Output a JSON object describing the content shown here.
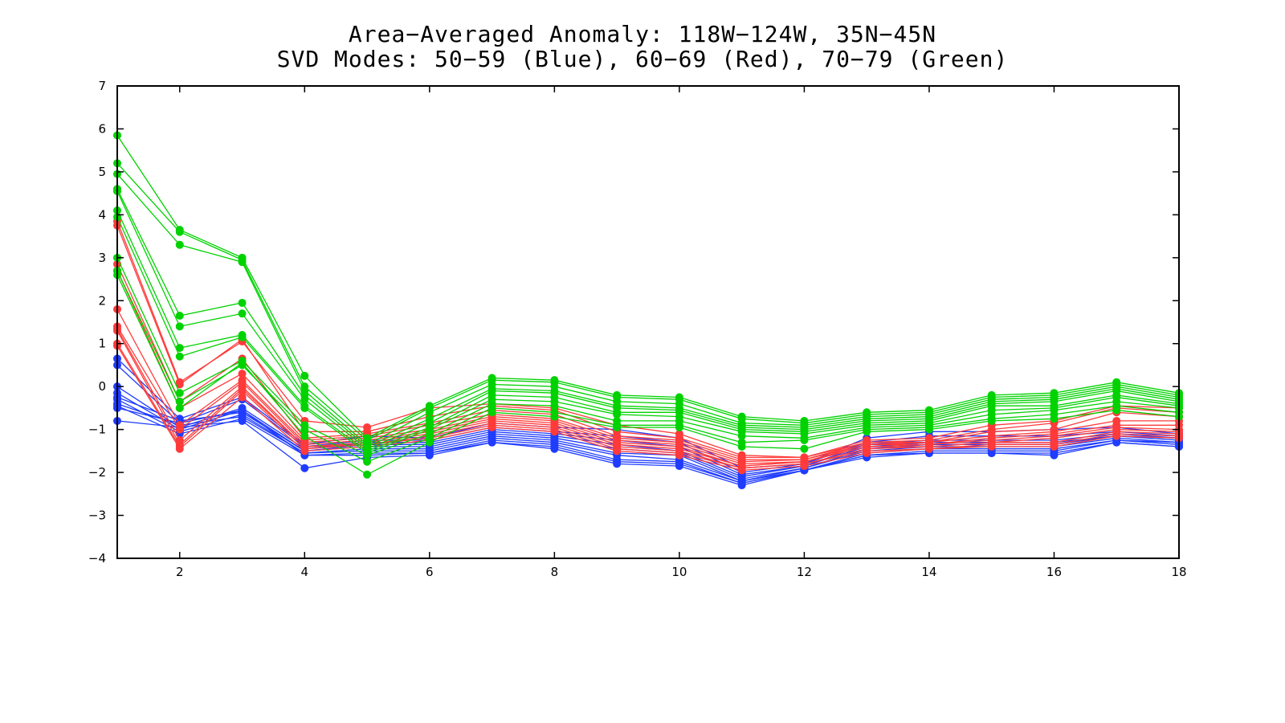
{
  "chart_data": {
    "type": "line",
    "title": "Area−Averaged Anomaly: 118W−124W, 35N−45N",
    "subtitle": "SVD Modes: 50−59 (Blue), 60−69 (Red), 70−79 (Green)",
    "xlabel": "",
    "ylabel": "",
    "xlim": [
      1,
      18
    ],
    "ylim": [
      -4,
      7
    ],
    "x_ticks": [
      2,
      4,
      6,
      8,
      10,
      12,
      14,
      16,
      18
    ],
    "y_ticks": [
      -4,
      -3,
      -2,
      -1,
      0,
      1,
      2,
      3,
      4,
      5,
      6,
      7
    ],
    "y_tick_labels": [
      "−4",
      "−3",
      "−2",
      "−1",
      "0",
      "1",
      "2",
      "3",
      "4",
      "5",
      "6",
      "7"
    ],
    "grid": false,
    "legend": "none",
    "x": [
      1,
      2,
      3,
      4,
      5,
      6,
      7,
      8,
      9,
      10,
      11,
      12,
      13,
      14,
      15,
      16,
      17,
      18
    ],
    "colors": {
      "Blue": "#1f3cff",
      "Red": "#ff3a3a",
      "Green": "#00d200"
    },
    "series": [
      {
        "color": "Blue",
        "values": [
          0.65,
          -0.75,
          -0.25,
          -1.35,
          -1.15,
          -1.2,
          -0.85,
          -0.95,
          -1.0,
          -1.2,
          -1.9,
          -1.8,
          -1.2,
          -1.05,
          -1.05,
          -1.0,
          -0.95,
          -1.1
        ]
      },
      {
        "color": "Blue",
        "values": [
          0.5,
          -0.85,
          -0.3,
          -1.4,
          -1.25,
          -1.25,
          -0.95,
          -1.05,
          -1.15,
          -1.3,
          -2.0,
          -1.8,
          -1.3,
          -1.15,
          -1.15,
          -1.15,
          -1.05,
          -1.15
        ]
      },
      {
        "color": "Blue",
        "values": [
          0.0,
          -0.95,
          -0.5,
          -1.45,
          -1.3,
          -1.3,
          -1.0,
          -1.1,
          -1.25,
          -1.4,
          -2.05,
          -1.85,
          -1.35,
          -1.25,
          -1.25,
          -1.25,
          -1.1,
          -1.2
        ]
      },
      {
        "color": "Blue",
        "values": [
          -0.15,
          -1.0,
          -0.55,
          -1.5,
          -1.35,
          -1.35,
          -1.05,
          -1.15,
          -1.35,
          -1.5,
          -2.1,
          -1.85,
          -1.4,
          -1.3,
          -1.3,
          -1.3,
          -1.15,
          -1.2
        ]
      },
      {
        "color": "Blue",
        "values": [
          -0.25,
          -0.8,
          -0.6,
          -1.5,
          -1.4,
          -1.4,
          -1.1,
          -1.2,
          -1.45,
          -1.55,
          -2.15,
          -1.9,
          -1.45,
          -1.35,
          -1.35,
          -1.35,
          -1.15,
          -1.25
        ]
      },
      {
        "color": "Blue",
        "values": [
          -0.3,
          -1.05,
          -0.65,
          -1.55,
          -1.45,
          -1.45,
          -1.15,
          -1.25,
          -1.55,
          -1.6,
          -2.2,
          -1.9,
          -1.5,
          -1.4,
          -1.4,
          -1.4,
          -1.2,
          -1.3
        ]
      },
      {
        "color": "Blue",
        "values": [
          -0.4,
          -0.9,
          -0.7,
          -1.55,
          -1.5,
          -1.5,
          -1.2,
          -1.3,
          -1.6,
          -1.7,
          -2.2,
          -1.95,
          -1.55,
          -1.45,
          -1.45,
          -1.45,
          -1.25,
          -1.3
        ]
      },
      {
        "color": "Blue",
        "values": [
          -0.45,
          -1.1,
          -0.75,
          -1.6,
          -1.55,
          -1.55,
          -1.25,
          -1.35,
          -1.7,
          -1.75,
          -2.25,
          -1.95,
          -1.6,
          -1.5,
          -1.5,
          -1.5,
          -1.25,
          -1.35
        ]
      },
      {
        "color": "Blue",
        "values": [
          -0.5,
          -0.85,
          -0.55,
          -1.6,
          -1.6,
          -1.55,
          -1.3,
          -1.4,
          -1.75,
          -1.8,
          -2.25,
          -1.95,
          -1.6,
          -1.55,
          -1.55,
          -1.55,
          -1.3,
          -1.4
        ]
      },
      {
        "color": "Blue",
        "values": [
          -0.8,
          -0.95,
          -0.8,
          -1.9,
          -1.65,
          -1.6,
          -1.3,
          -1.45,
          -1.8,
          -1.85,
          -2.3,
          -1.95,
          -1.65,
          -1.55,
          -1.55,
          -1.6,
          -1.3,
          -1.4
        ]
      },
      {
        "color": "Red",
        "values": [
          3.85,
          0.1,
          1.05,
          -0.8,
          -0.95,
          -0.5,
          -0.4,
          -0.5,
          -0.9,
          -1.1,
          -1.6,
          -1.65,
          -1.25,
          -1.2,
          -0.9,
          -0.8,
          -0.45,
          -0.5
        ]
      },
      {
        "color": "Red",
        "values": [
          3.75,
          0.05,
          1.1,
          -1.05,
          -1.05,
          -0.7,
          -0.45,
          -0.55,
          -1.05,
          -1.2,
          -1.65,
          -1.65,
          -1.3,
          -1.25,
          -1.0,
          -0.85,
          -0.5,
          -0.6
        ]
      },
      {
        "color": "Red",
        "values": [
          2.85,
          -0.35,
          0.65,
          -1.2,
          -1.1,
          -0.85,
          -0.55,
          -0.65,
          -1.15,
          -1.25,
          -1.7,
          -1.7,
          -1.3,
          -1.3,
          -1.05,
          -1.0,
          -0.6,
          -0.7
        ]
      },
      {
        "color": "Red",
        "values": [
          2.7,
          -0.5,
          0.3,
          -1.25,
          -1.15,
          -0.9,
          -0.65,
          -0.75,
          -1.2,
          -1.3,
          -1.75,
          -1.7,
          -1.35,
          -1.3,
          -1.15,
          -1.05,
          -0.8,
          -0.8
        ]
      },
      {
        "color": "Red",
        "values": [
          1.8,
          -0.9,
          0.15,
          -1.3,
          -1.2,
          -1.0,
          -0.7,
          -0.8,
          -1.25,
          -1.35,
          -1.8,
          -1.75,
          -1.35,
          -1.35,
          -1.2,
          -1.1,
          -0.9,
          -0.9
        ]
      },
      {
        "color": "Red",
        "values": [
          1.4,
          -1.0,
          0.1,
          -1.35,
          -1.25,
          -1.05,
          -0.75,
          -0.85,
          -1.3,
          -1.4,
          -1.85,
          -1.75,
          -1.4,
          -1.35,
          -1.25,
          -1.15,
          -0.95,
          -1.0
        ]
      },
      {
        "color": "Red",
        "values": [
          1.35,
          -1.25,
          0.0,
          -1.4,
          -1.3,
          -1.1,
          -0.8,
          -0.9,
          -1.35,
          -1.45,
          -1.85,
          -1.75,
          -1.4,
          -1.4,
          -1.3,
          -1.2,
          -1.0,
          -1.05
        ]
      },
      {
        "color": "Red",
        "values": [
          1.3,
          -1.35,
          -0.05,
          -1.4,
          -1.35,
          -1.15,
          -0.85,
          -0.95,
          -1.4,
          -1.5,
          -1.9,
          -1.8,
          -1.45,
          -1.4,
          -1.3,
          -1.3,
          -1.05,
          -1.1
        ]
      },
      {
        "color": "Red",
        "values": [
          1.0,
          -1.4,
          -0.1,
          -1.45,
          -1.35,
          -1.2,
          -0.9,
          -1.0,
          -1.45,
          -1.55,
          -1.9,
          -1.8,
          -1.5,
          -1.45,
          -1.35,
          -1.35,
          -1.1,
          -1.15
        ]
      },
      {
        "color": "Red",
        "values": [
          0.95,
          -1.45,
          -0.25,
          -1.5,
          -1.4,
          -1.25,
          -0.95,
          -1.05,
          -1.5,
          -1.6,
          -1.95,
          -1.85,
          -1.55,
          -1.45,
          -1.4,
          -1.4,
          -1.15,
          -1.2
        ]
      },
      {
        "color": "Green",
        "values": [
          5.85,
          3.65,
          3.0,
          0.25,
          -1.2,
          -0.45,
          0.2,
          0.15,
          -0.2,
          -0.25,
          -0.7,
          -0.8,
          -0.6,
          -0.55,
          -0.2,
          -0.15,
          0.1,
          -0.15
        ]
      },
      {
        "color": "Green",
        "values": [
          5.2,
          3.6,
          2.95,
          0.0,
          -1.25,
          -0.5,
          0.15,
          0.1,
          -0.25,
          -0.3,
          -0.75,
          -0.85,
          -0.65,
          -0.6,
          -0.25,
          -0.2,
          0.05,
          -0.2
        ]
      },
      {
        "color": "Green",
        "values": [
          4.95,
          3.3,
          2.9,
          -0.1,
          -1.35,
          -0.6,
          0.05,
          0.0,
          -0.35,
          -0.4,
          -0.85,
          -0.9,
          -0.7,
          -0.65,
          -0.3,
          -0.25,
          0.0,
          -0.25
        ]
      },
      {
        "color": "Green",
        "values": [
          4.6,
          1.65,
          1.95,
          -0.2,
          -1.4,
          -0.75,
          -0.05,
          -0.1,
          -0.45,
          -0.5,
          -0.9,
          -0.95,
          -0.75,
          -0.7,
          -0.35,
          -0.3,
          -0.05,
          -0.3
        ]
      },
      {
        "color": "Green",
        "values": [
          4.55,
          1.4,
          1.7,
          -0.3,
          -1.45,
          -0.85,
          -0.1,
          -0.15,
          -0.5,
          -0.55,
          -0.95,
          -1.0,
          -0.8,
          -0.75,
          -0.4,
          -0.35,
          -0.1,
          -0.35
        ]
      },
      {
        "color": "Green",
        "values": [
          4.1,
          0.9,
          1.2,
          -0.45,
          -1.5,
          -0.95,
          -0.2,
          -0.25,
          -0.6,
          -0.6,
          -1.0,
          -1.05,
          -0.85,
          -0.8,
          -0.45,
          -0.45,
          -0.2,
          -0.4
        ]
      },
      {
        "color": "Green",
        "values": [
          3.95,
          0.7,
          1.15,
          -0.5,
          -1.55,
          -1.0,
          -0.3,
          -0.35,
          -0.65,
          -0.7,
          -1.05,
          -1.1,
          -0.9,
          -0.85,
          -0.55,
          -0.5,
          -0.25,
          -0.45
        ]
      },
      {
        "color": "Green",
        "values": [
          3.0,
          -0.15,
          0.6,
          -0.9,
          -1.6,
          -1.1,
          -0.4,
          -0.45,
          -0.8,
          -0.8,
          -1.15,
          -1.2,
          -0.95,
          -0.9,
          -0.65,
          -0.55,
          -0.35,
          -0.5
        ]
      },
      {
        "color": "Green",
        "values": [
          2.7,
          -0.35,
          0.5,
          -1.0,
          -1.75,
          -1.2,
          -0.5,
          -0.6,
          -0.9,
          -0.9,
          -1.3,
          -1.25,
          -1.0,
          -0.95,
          -0.75,
          -0.65,
          -0.45,
          -0.6
        ]
      },
      {
        "color": "Green",
        "values": [
          2.6,
          -0.5,
          0.55,
          -1.15,
          -2.05,
          -1.3,
          -0.6,
          -0.7,
          -0.95,
          -0.95,
          -1.4,
          -1.45,
          -1.05,
          -1.0,
          -0.8,
          -0.75,
          -0.55,
          -0.7
        ]
      }
    ]
  }
}
